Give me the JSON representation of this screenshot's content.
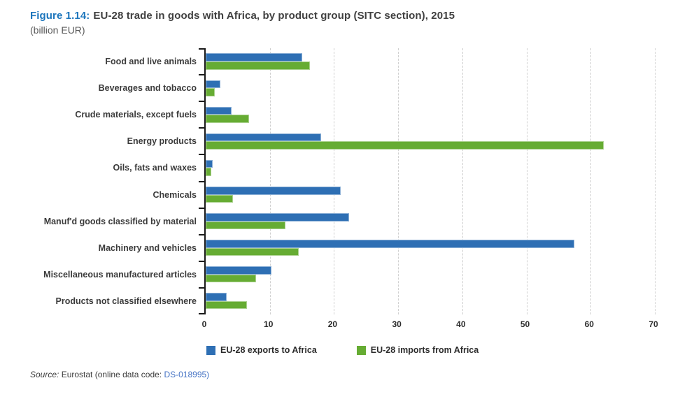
{
  "title": {
    "prefix": "Figure 1.14:",
    "text": "EU-28 trade in goods with Africa, by product group (SITC section), 2015",
    "subtitle": "(billion EUR)"
  },
  "colors": {
    "exports_blue": "#2E6FB4",
    "imports_green": "#66AC33",
    "title_blue": "#1C75BC",
    "link_blue": "#4472C4",
    "text_dark": "#404040",
    "text_gray": "#595959",
    "axis_black": "#1A1A1A"
  },
  "chart_data": {
    "type": "bar",
    "orientation": "horizontal",
    "title": "EU-28 trade in goods with Africa, by product group (SITC section), 2015",
    "unit": "billion EUR",
    "categories": [
      "Food and live animals",
      "Beverages and tobacco",
      "Crude materials, except fuels",
      "Energy products",
      "Oils, fats and waxes",
      "Chemicals",
      "Manuf'd goods classified by material",
      "Machinery and vehicles",
      "Miscellaneous manufactured articles",
      "Products not classified elsewhere"
    ],
    "series": [
      {
        "name": "EU-28 exports to Africa",
        "color_key": "exports_blue",
        "values": [
          15.0,
          2.3,
          4.0,
          18.0,
          1.1,
          21.0,
          22.3,
          57.5,
          10.3,
          3.3
        ]
      },
      {
        "name": "EU-28 imports from Africa",
        "color_key": "imports_green",
        "values": [
          16.3,
          1.4,
          6.8,
          62.0,
          0.9,
          4.3,
          12.4,
          14.5,
          7.8,
          6.4
        ]
      }
    ],
    "xlim": [
      0,
      70
    ],
    "xticks": [
      0,
      10,
      20,
      30,
      40,
      50,
      60,
      70
    ],
    "grid": "vertical-dashed",
    "legend_position": "bottom"
  },
  "source": {
    "prefix": "Source:",
    "body": " Eurostat (online data code: ",
    "link": "DS-018995",
    "suffix": ")"
  }
}
